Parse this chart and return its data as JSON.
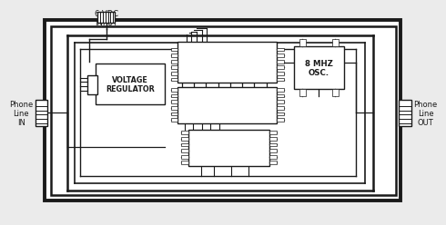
{
  "bg_color": "#ebebeb",
  "line_color": "#1a1a1a",
  "white": "#ffffff",
  "title_text": "6 VDC\nINPUT",
  "phone_in": "Phone\nLine\nIN",
  "phone_out": "Phone\nLine\nOUT",
  "voltage_reg": "VOLTAGE\nREGULATOR",
  "osc_label": "8 MHZ\nOSC.",
  "lw_outer": 2.8,
  "lw_inner": 1.8,
  "lw_thin": 1.0,
  "lw_trace": 1.2
}
